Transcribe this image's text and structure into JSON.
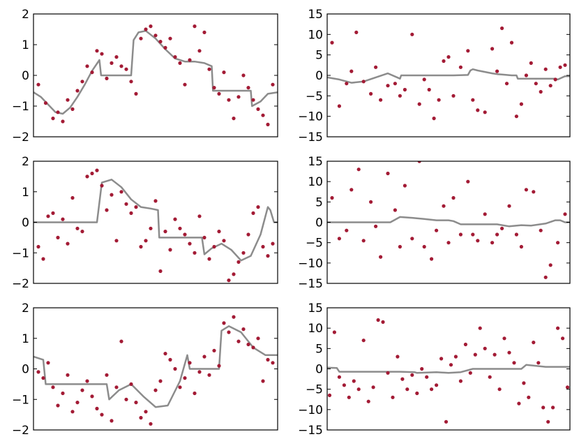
{
  "chart_data": [
    {
      "type": "scatter",
      "ylim": [
        -2,
        2
      ],
      "yticks": [
        "−2",
        "−1",
        "0",
        "1",
        "2"
      ],
      "xlim": [
        0,
        1
      ],
      "series": [
        {
          "kind": "line",
          "color": "#8c8c8c",
          "x": [
            0,
            0.03,
            0.06,
            0.09,
            0.12,
            0.15,
            0.18,
            0.21,
            0.24,
            0.27,
            0.277,
            0.4,
            0.41,
            0.43,
            0.46,
            0.5,
            0.54,
            0.58,
            0.62,
            0.66,
            0.7,
            0.73,
            0.735,
            0.78,
            0.82,
            0.86,
            0.89,
            0.895,
            0.93,
            0.96,
            1.0
          ],
          "y": [
            -0.55,
            -0.7,
            -0.95,
            -1.2,
            -1.25,
            -1.05,
            -0.7,
            -0.3,
            0.15,
            0.5,
            0.0,
            0.0,
            1.15,
            1.4,
            1.45,
            1.2,
            0.85,
            0.55,
            0.45,
            0.45,
            0.4,
            0.3,
            -0.5,
            -0.5,
            -0.5,
            -0.5,
            -0.5,
            -1.0,
            -0.85,
            -0.6,
            -0.55
          ]
        },
        {
          "kind": "points",
          "color": "#a31b35",
          "x": [
            0.02,
            0.05,
            0.08,
            0.1,
            0.12,
            0.14,
            0.16,
            0.18,
            0.2,
            0.22,
            0.24,
            0.26,
            0.28,
            0.3,
            0.32,
            0.34,
            0.36,
            0.38,
            0.4,
            0.42,
            0.44,
            0.46,
            0.48,
            0.5,
            0.52,
            0.54,
            0.56,
            0.58,
            0.6,
            0.62,
            0.64,
            0.66,
            0.68,
            0.7,
            0.72,
            0.74,
            0.76,
            0.78,
            0.8,
            0.82,
            0.84,
            0.86,
            0.88,
            0.9,
            0.92,
            0.94,
            0.96,
            0.98
          ],
          "y": [
            -0.3,
            -0.9,
            -1.4,
            -1.2,
            -1.5,
            -0.8,
            -1.1,
            -0.5,
            -0.2,
            0.3,
            0.1,
            0.8,
            0.7,
            -0.1,
            0.4,
            0.6,
            0.3,
            0.2,
            -0.2,
            -0.6,
            1.2,
            1.5,
            1.6,
            1.3,
            1.1,
            0.9,
            1.2,
            0.6,
            0.4,
            -0.3,
            0.5,
            1.6,
            0.8,
            1.4,
            0.2,
            -0.4,
            -0.6,
            0.1,
            -0.8,
            -1.4,
            -0.7,
            0.0,
            -0.4,
            -0.8,
            -1.1,
            -1.3,
            -1.6,
            -0.3
          ]
        }
      ]
    },
    {
      "type": "scatter",
      "ylim": [
        -15,
        15
      ],
      "yticks": [
        "−15",
        "−10",
        "−5",
        "0",
        "5",
        "10",
        "15"
      ],
      "xlim": [
        0,
        1
      ],
      "series": [
        {
          "kind": "line",
          "color": "#8c8c8c",
          "x": [
            0,
            0.05,
            0.1,
            0.15,
            0.2,
            0.25,
            0.3,
            0.305,
            0.4,
            0.5,
            0.52,
            0.58,
            0.59,
            0.6,
            0.62,
            0.68,
            0.7,
            0.72,
            0.76,
            0.78,
            0.785,
            0.86,
            0.94,
            0.95,
            0.98,
            1.0
          ],
          "y": [
            -0.5,
            -1.0,
            -1.8,
            -1.5,
            -0.5,
            0.5,
            -0.8,
            0.0,
            0.0,
            0.0,
            0.0,
            0.1,
            1.2,
            1.5,
            1.2,
            0.5,
            0.3,
            0.2,
            0.0,
            0.0,
            -0.8,
            -0.8,
            -0.8,
            -1.0,
            -0.2,
            -0.2
          ]
        },
        {
          "kind": "points",
          "color": "#a31b35",
          "x": [
            0.02,
            0.05,
            0.08,
            0.1,
            0.12,
            0.15,
            0.18,
            0.2,
            0.22,
            0.25,
            0.28,
            0.3,
            0.32,
            0.35,
            0.38,
            0.4,
            0.42,
            0.44,
            0.46,
            0.48,
            0.5,
            0.52,
            0.55,
            0.58,
            0.6,
            0.62,
            0.65,
            0.68,
            0.7,
            0.72,
            0.74,
            0.76,
            0.78,
            0.8,
            0.82,
            0.84,
            0.86,
            0.88,
            0.9,
            0.92,
            0.94,
            0.96,
            0.98
          ],
          "y": [
            8,
            -7.5,
            -2,
            1,
            10.5,
            -1.5,
            -4.5,
            2,
            -6,
            -2.5,
            -2,
            -5,
            -3.5,
            10,
            -7,
            -1,
            -3.5,
            -10.5,
            -6,
            3.5,
            4.5,
            -5,
            2,
            6,
            -6,
            -8.5,
            -9,
            6.5,
            1,
            11.5,
            -2,
            8,
            -10,
            -7,
            0,
            3,
            -2,
            -4,
            1.5,
            -2.5,
            -1,
            2,
            2.5
          ]
        }
      ]
    },
    {
      "type": "scatter",
      "ylim": [
        -2,
        2
      ],
      "yticks": [
        "−2",
        "−1",
        "0",
        "1",
        "2"
      ],
      "xlim": [
        0,
        1
      ],
      "series": [
        {
          "kind": "line",
          "color": "#8c8c8c",
          "x": [
            0,
            0.25,
            0.26,
            0.28,
            0.32,
            0.36,
            0.4,
            0.44,
            0.48,
            0.51,
            0.515,
            0.54,
            0.58,
            0.62,
            0.66,
            0.69,
            0.7,
            0.73,
            0.77,
            0.81,
            0.85,
            0.89,
            0.93,
            0.96,
            0.97,
            0.985,
            1.0
          ],
          "y": [
            0,
            0,
            0,
            1.3,
            1.4,
            1.15,
            0.75,
            0.5,
            0.45,
            0.4,
            -0.5,
            -0.5,
            -0.5,
            -0.5,
            -0.5,
            -0.5,
            -1.05,
            -0.85,
            -0.7,
            -0.9,
            -1.25,
            -1.1,
            -0.4,
            0.5,
            0.4,
            0.0,
            0.0
          ]
        },
        {
          "kind": "points",
          "color": "#a31b35",
          "x": [
            0.02,
            0.04,
            0.06,
            0.08,
            0.1,
            0.12,
            0.14,
            0.16,
            0.18,
            0.2,
            0.22,
            0.24,
            0.26,
            0.28,
            0.3,
            0.32,
            0.34,
            0.36,
            0.38,
            0.4,
            0.42,
            0.44,
            0.46,
            0.48,
            0.5,
            0.52,
            0.54,
            0.56,
            0.58,
            0.6,
            0.62,
            0.64,
            0.66,
            0.68,
            0.7,
            0.72,
            0.74,
            0.76,
            0.78,
            0.8,
            0.82,
            0.84,
            0.86,
            0.88,
            0.9,
            0.92,
            0.94,
            0.96,
            0.98
          ],
          "y": [
            -0.8,
            -1.2,
            0.2,
            0.3,
            -0.5,
            0.1,
            -0.7,
            0.8,
            -0.2,
            -0.3,
            1.5,
            1.6,
            1.7,
            1.2,
            0.4,
            0.9,
            -0.6,
            1.0,
            0.6,
            0.3,
            0.5,
            -0.8,
            -0.6,
            -0.2,
            0.7,
            -1.6,
            -0.3,
            -0.9,
            0.1,
            -0.2,
            -0.4,
            -0.7,
            -1.0,
            0.2,
            -0.5,
            -1.2,
            -0.8,
            -0.3,
            -0.6,
            -1.9,
            -1.7,
            -1.3,
            -1.0,
            -0.4,
            0.3,
            0.5,
            -0.8,
            -1.1,
            -0.7
          ]
        }
      ]
    },
    {
      "type": "scatter",
      "ylim": [
        -15,
        15
      ],
      "yticks": [
        "−15",
        "−10",
        "−5",
        "0",
        "5",
        "10",
        "15"
      ],
      "xlim": [
        0,
        1
      ],
      "series": [
        {
          "kind": "line",
          "color": "#8c8c8c",
          "x": [
            0,
            0.25,
            0.26,
            0.3,
            0.35,
            0.4,
            0.45,
            0.5,
            0.52,
            0.55,
            0.6,
            0.66,
            0.67,
            0.7,
            0.75,
            0.8,
            0.84,
            0.9,
            0.94,
            0.96,
            0.98,
            1.0
          ],
          "y": [
            0,
            0,
            0,
            1.3,
            1.1,
            0.8,
            0.5,
            0.5,
            0.3,
            -0.5,
            -0.5,
            -0.5,
            -0.5,
            -0.5,
            -1.0,
            -0.7,
            -0.8,
            -0.3,
            0.5,
            0.5,
            0.0,
            0.0
          ]
        },
        {
          "kind": "points",
          "color": "#a31b35",
          "x": [
            0.02,
            0.05,
            0.08,
            0.1,
            0.13,
            0.15,
            0.18,
            0.2,
            0.22,
            0.25,
            0.28,
            0.3,
            0.32,
            0.35,
            0.38,
            0.4,
            0.43,
            0.45,
            0.48,
            0.5,
            0.52,
            0.55,
            0.58,
            0.6,
            0.62,
            0.65,
            0.68,
            0.7,
            0.72,
            0.75,
            0.78,
            0.8,
            0.82,
            0.85,
            0.88,
            0.9,
            0.92,
            0.95,
            0.98
          ],
          "y": [
            6,
            -4,
            -2,
            8,
            13,
            -4.5,
            5,
            -1,
            -8.5,
            12,
            3,
            -6,
            9,
            -4,
            15,
            -6,
            -9,
            -2,
            4,
            -5,
            6,
            -3,
            10,
            -3,
            -4.5,
            2,
            -5,
            -3,
            -1.5,
            4,
            -3,
            -6,
            8,
            7.5,
            -2,
            -13.5,
            -10.5,
            -5,
            2
          ]
        }
      ]
    },
    {
      "type": "scatter",
      "ylim": [
        -2,
        2
      ],
      "yticks": [
        "−2",
        "−1",
        "0",
        "1",
        "2"
      ],
      "xlim": [
        0,
        1
      ],
      "series": [
        {
          "kind": "line",
          "color": "#8c8c8c",
          "x": [
            0,
            0.04,
            0.05,
            0.1,
            0.2,
            0.3,
            0.31,
            0.35,
            0.4,
            0.45,
            0.5,
            0.55,
            0.6,
            0.63,
            0.64,
            0.7,
            0.76,
            0.77,
            0.8,
            0.85,
            0.9,
            0.95,
            1.0
          ],
          "y": [
            0.4,
            0.3,
            -0.5,
            -0.5,
            -0.5,
            -0.5,
            -1.0,
            -0.7,
            -0.5,
            -0.9,
            -1.25,
            -1.2,
            -0.4,
            0.45,
            0.0,
            0.0,
            0.0,
            1.25,
            1.4,
            1.2,
            0.7,
            0.45,
            0.45
          ]
        },
        {
          "kind": "points",
          "color": "#a31b35",
          "x": [
            0.02,
            0.04,
            0.06,
            0.08,
            0.1,
            0.12,
            0.14,
            0.16,
            0.18,
            0.2,
            0.22,
            0.24,
            0.26,
            0.28,
            0.3,
            0.32,
            0.34,
            0.36,
            0.38,
            0.4,
            0.42,
            0.44,
            0.46,
            0.48,
            0.5,
            0.52,
            0.54,
            0.56,
            0.58,
            0.6,
            0.62,
            0.64,
            0.66,
            0.68,
            0.7,
            0.72,
            0.74,
            0.76,
            0.78,
            0.8,
            0.82,
            0.84,
            0.86,
            0.88,
            0.9,
            0.92,
            0.94,
            0.96,
            0.98
          ],
          "y": [
            -0.1,
            -0.3,
            0.2,
            -0.6,
            -1.2,
            -0.8,
            -0.2,
            -1.4,
            -1.1,
            -0.7,
            -0.4,
            -0.9,
            -1.3,
            -1.5,
            -0.2,
            -1.7,
            -0.6,
            0.9,
            -1.0,
            -0.5,
            -1.1,
            -1.6,
            -1.4,
            -1.8,
            -0.7,
            -0.4,
            0.5,
            0.3,
            0.0,
            -0.6,
            -0.3,
            0.2,
            -0.8,
            -0.1,
            0.4,
            -0.2,
            0.6,
            0.1,
            1.5,
            1.2,
            1.7,
            0.9,
            1.3,
            0.8,
            0.7,
            1.0,
            -0.4,
            0.3,
            0.2
          ]
        }
      ]
    },
    {
      "type": "scatter",
      "ylim": [
        -15,
        15
      ],
      "yticks": [
        "−15",
        "−10",
        "−5",
        "0",
        "5",
        "10",
        "15"
      ],
      "xlim": [
        0,
        1
      ],
      "series": [
        {
          "kind": "line",
          "color": "#8c8c8c",
          "x": [
            0,
            0.04,
            0.05,
            0.15,
            0.3,
            0.36,
            0.37,
            0.45,
            0.5,
            0.55,
            0.6,
            0.64,
            0.7,
            0.8,
            0.82,
            0.9,
            0.95,
            1.0
          ],
          "y": [
            0.3,
            0.2,
            -0.7,
            -0.7,
            -0.7,
            -0.8,
            -1.0,
            -0.8,
            -1.0,
            -0.8,
            0.0,
            0.0,
            0.0,
            0.0,
            1.0,
            0.5,
            0.5,
            0.5
          ]
        },
        {
          "kind": "points",
          "color": "#a31b35",
          "x": [
            0.01,
            0.03,
            0.05,
            0.07,
            0.09,
            0.11,
            0.13,
            0.15,
            0.17,
            0.19,
            0.21,
            0.23,
            0.25,
            0.27,
            0.29,
            0.31,
            0.33,
            0.35,
            0.37,
            0.39,
            0.41,
            0.43,
            0.45,
            0.47,
            0.49,
            0.51,
            0.53,
            0.55,
            0.57,
            0.59,
            0.61,
            0.63,
            0.65,
            0.67,
            0.69,
            0.71,
            0.73,
            0.75,
            0.77,
            0.79,
            0.81,
            0.83,
            0.85,
            0.87,
            0.89,
            0.91,
            0.93,
            0.95,
            0.97,
            0.99
          ],
          "y": [
            -6.5,
            9,
            -2,
            -4,
            -7,
            -3,
            -5,
            7,
            -8,
            -4.5,
            12,
            11.5,
            -1,
            -7,
            3,
            -2.5,
            -5,
            -1.5,
            -6,
            0,
            -2,
            -5,
            -4,
            2.5,
            -13,
            1,
            3,
            -3,
            6,
            -1,
            3.5,
            10,
            5,
            -2,
            3.5,
            -5,
            7.5,
            4,
            1.5,
            -8.5,
            -3.5,
            -7,
            6.5,
            1.5,
            -9.5,
            -13,
            -9.5,
            10,
            7.5,
            -4.5
          ]
        }
      ]
    }
  ]
}
